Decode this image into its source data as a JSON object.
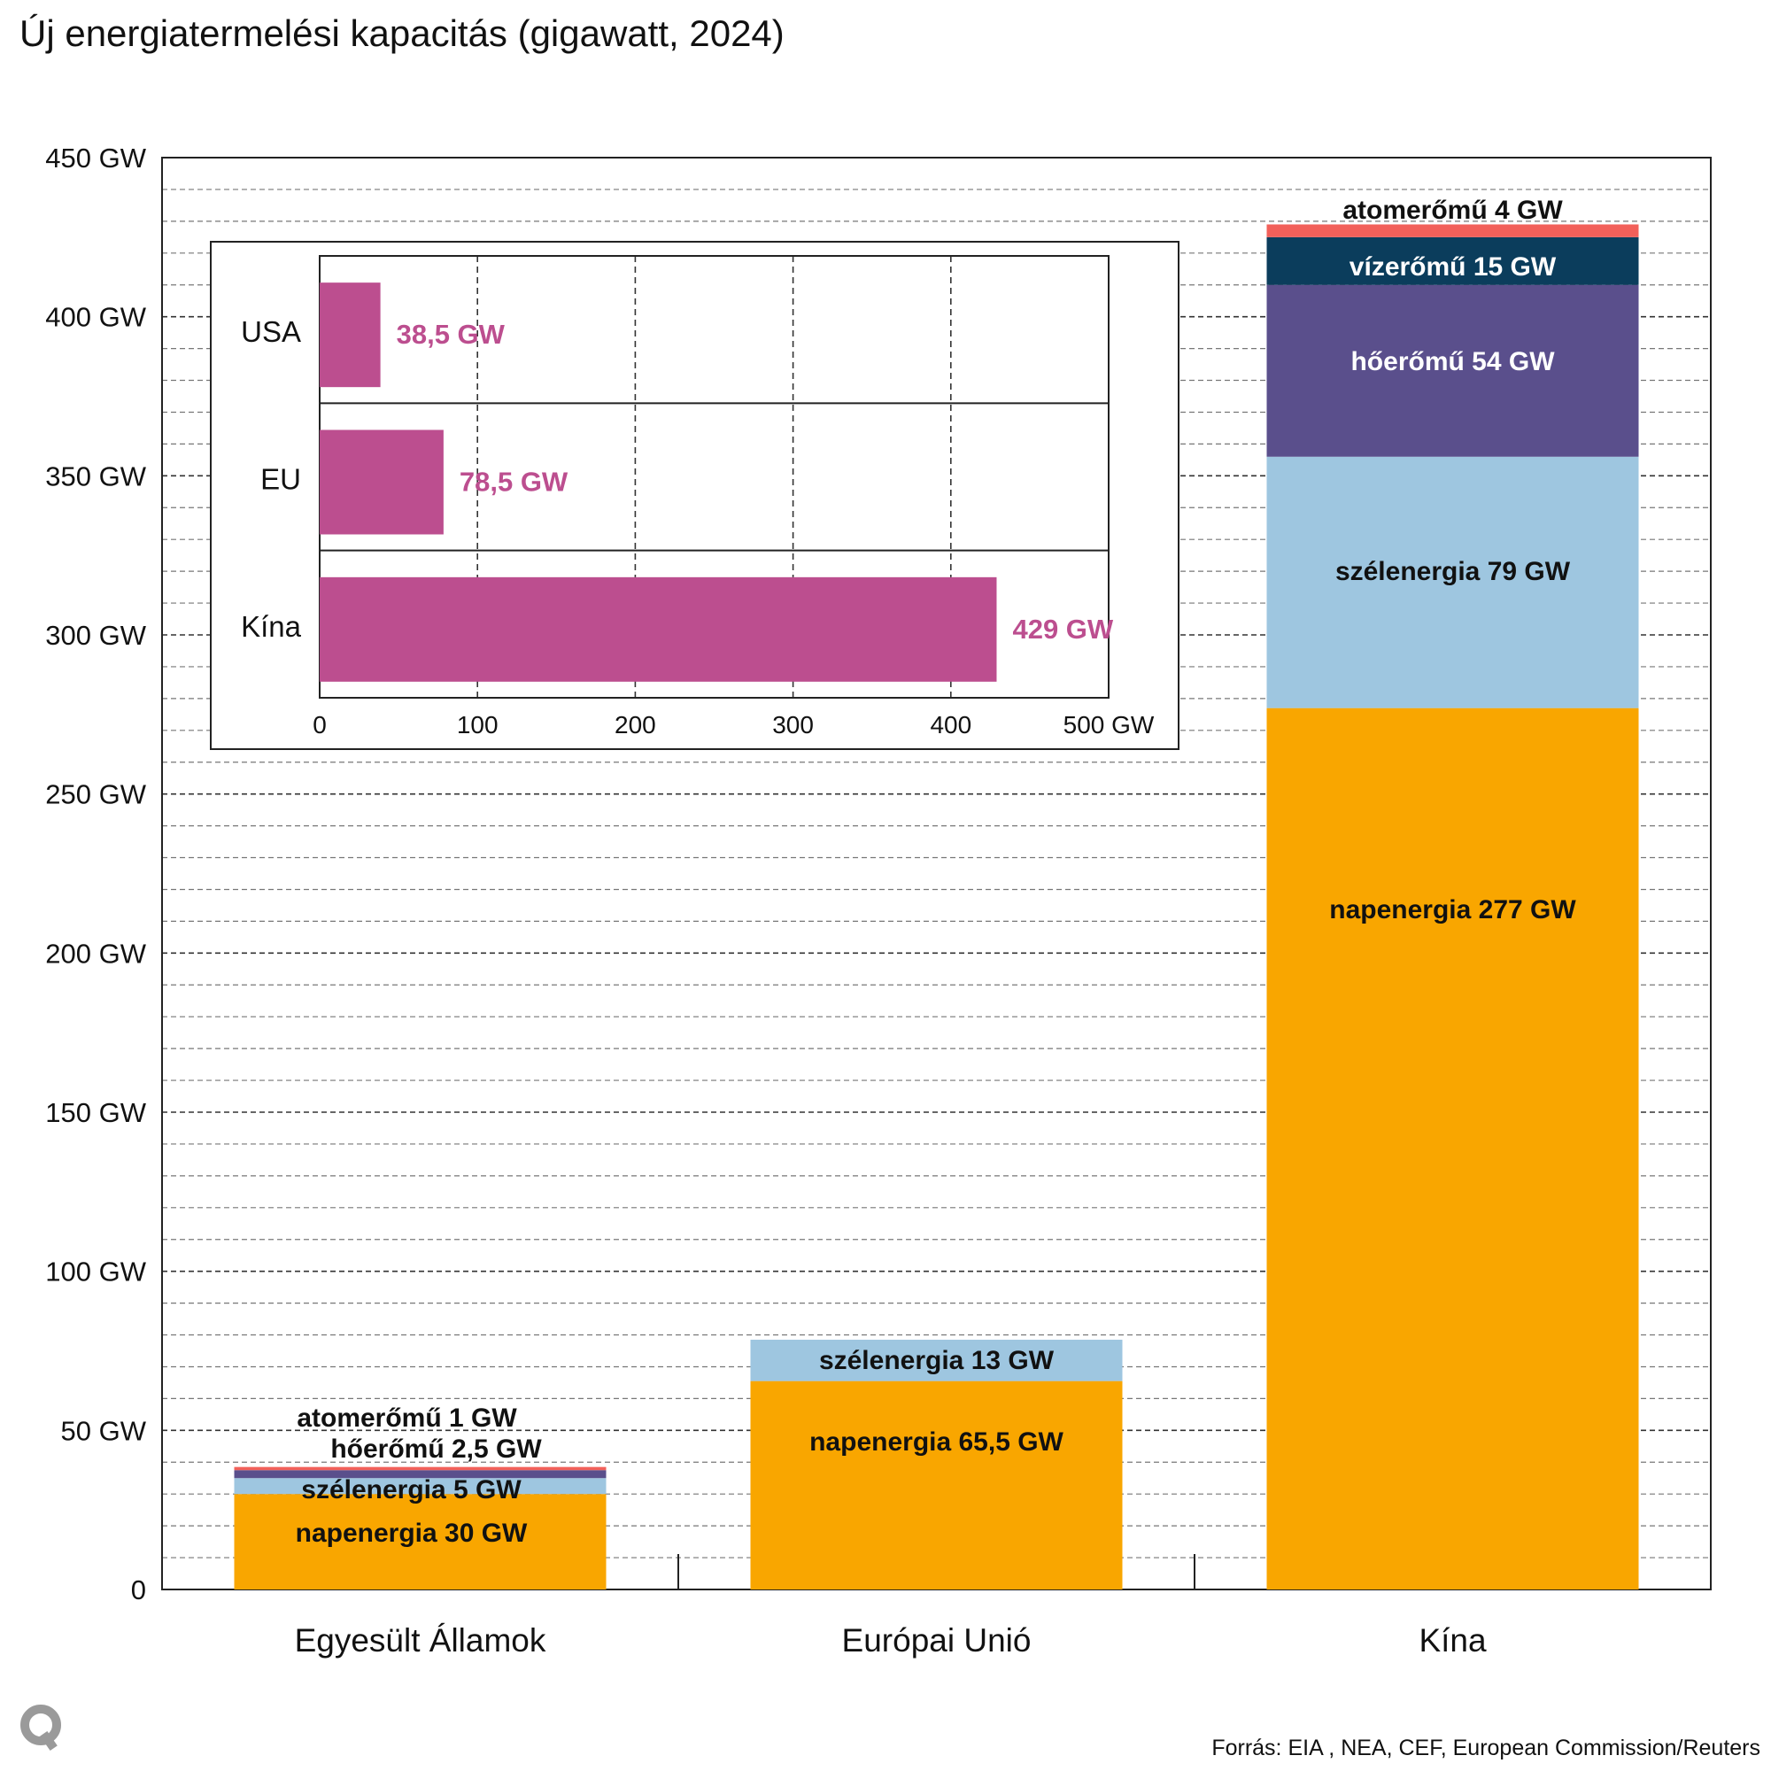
{
  "title": "Új energiatermelési kapacitás (gigawatt, 2024)",
  "source": "Forrás: EIA , NEA, CEF, European Commission/Reuters",
  "logo": "q-logo",
  "colors": {
    "napenergia": "#f9a600",
    "szelenergia": "#9ec6e0",
    "hoeromu": "#5a4f8c",
    "vizeromu": "#0b3d5c",
    "atomeromu": "#f2605a",
    "inset_bar": "#bc4e8f"
  },
  "chart_data": [
    {
      "type": "bar",
      "stacked": true,
      "title": "Új energiatermelési kapacitás (gigawatt, 2024)",
      "ylim": [
        0,
        450
      ],
      "yticks": [
        "0",
        "50 GW",
        "100 GW",
        "150 GW",
        "200 GW",
        "250 GW",
        "300 GW",
        "350 GW",
        "400 GW",
        "450 GW"
      ],
      "grid": true,
      "categories": [
        "Egyesült Államok",
        "Európai Unió",
        "Kína"
      ],
      "bars": [
        {
          "category": "Egyesült Államok",
          "segments": [
            {
              "key": "napenergia",
              "value": 30,
              "label": "napenergia  30 GW"
            },
            {
              "key": "szelenergia",
              "value": 5,
              "label": "szélenergia  5 GW"
            },
            {
              "key": "hoeromu",
              "value": 2.5,
              "label": "hőerőmű  2,5 GW"
            },
            {
              "key": "atomeromu",
              "value": 1,
              "label": "atomerőmű  1 GW"
            }
          ]
        },
        {
          "category": "Európai Unió",
          "segments": [
            {
              "key": "napenergia",
              "value": 65.5,
              "label": "napenergia  65,5 GW"
            },
            {
              "key": "szelenergia",
              "value": 13,
              "label": "szélenergia  13 GW"
            }
          ]
        },
        {
          "category": "Kína",
          "segments": [
            {
              "key": "napenergia",
              "value": 277,
              "label": "napenergia  277 GW"
            },
            {
              "key": "szelenergia",
              "value": 79,
              "label": "szélenergia  79 GW"
            },
            {
              "key": "hoeromu",
              "value": 54,
              "label": "hőerőmű  54 GW"
            },
            {
              "key": "vizeromu",
              "value": 15,
              "label": "vízerőmű  15 GW"
            },
            {
              "key": "atomeromu",
              "value": 4,
              "label": "atomerőmű  4 GW"
            }
          ]
        }
      ]
    },
    {
      "type": "bar",
      "orientation": "horizontal",
      "categories": [
        "USA",
        "EU",
        "Kína"
      ],
      "values": [
        38.5,
        78.5,
        429
      ],
      "value_labels": [
        "38,5 GW",
        "78,5 GW",
        "429 GW"
      ],
      "xlim": [
        0,
        500
      ],
      "xticks": [
        "0",
        "100",
        "200",
        "300",
        "400",
        "500 GW"
      ],
      "grid": true
    }
  ]
}
